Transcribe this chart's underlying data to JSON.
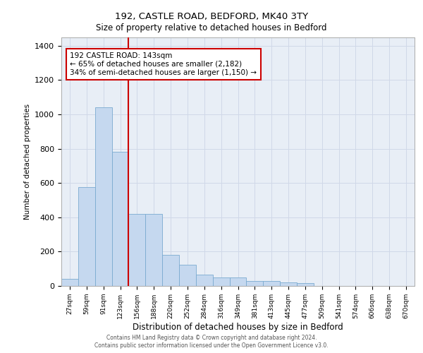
{
  "title1": "192, CASTLE ROAD, BEDFORD, MK40 3TY",
  "title2": "Size of property relative to detached houses in Bedford",
  "xlabel": "Distribution of detached houses by size in Bedford",
  "ylabel": "Number of detached properties",
  "categories": [
    "27sqm",
    "59sqm",
    "91sqm",
    "123sqm",
    "156sqm",
    "188sqm",
    "220sqm",
    "252sqm",
    "284sqm",
    "316sqm",
    "349sqm",
    "381sqm",
    "413sqm",
    "445sqm",
    "477sqm",
    "509sqm",
    "541sqm",
    "574sqm",
    "606sqm",
    "638sqm",
    "670sqm"
  ],
  "values": [
    40,
    575,
    1040,
    780,
    420,
    420,
    180,
    125,
    65,
    50,
    50,
    30,
    30,
    20,
    15,
    0,
    0,
    0,
    0,
    0,
    0
  ],
  "bar_color": "#c5d8ef",
  "bar_edge_color": "#7aaad0",
  "vline_color": "#cc0000",
  "annotation_text": "192 CASTLE ROAD: 143sqm\n← 65% of detached houses are smaller (2,182)\n34% of semi-detached houses are larger (1,150) →",
  "annotation_box_color": "#ffffff",
  "annotation_box_edge_color": "#cc0000",
  "ylim": [
    0,
    1450
  ],
  "yticks": [
    0,
    200,
    400,
    600,
    800,
    1000,
    1200,
    1400
  ],
  "grid_color": "#d0d8e8",
  "plot_bg_color": "#e8eef6",
  "footer1": "Contains HM Land Registry data © Crown copyright and database right 2024.",
  "footer2": "Contains public sector information licensed under the Open Government Licence v3.0.",
  "vline_index": 4
}
